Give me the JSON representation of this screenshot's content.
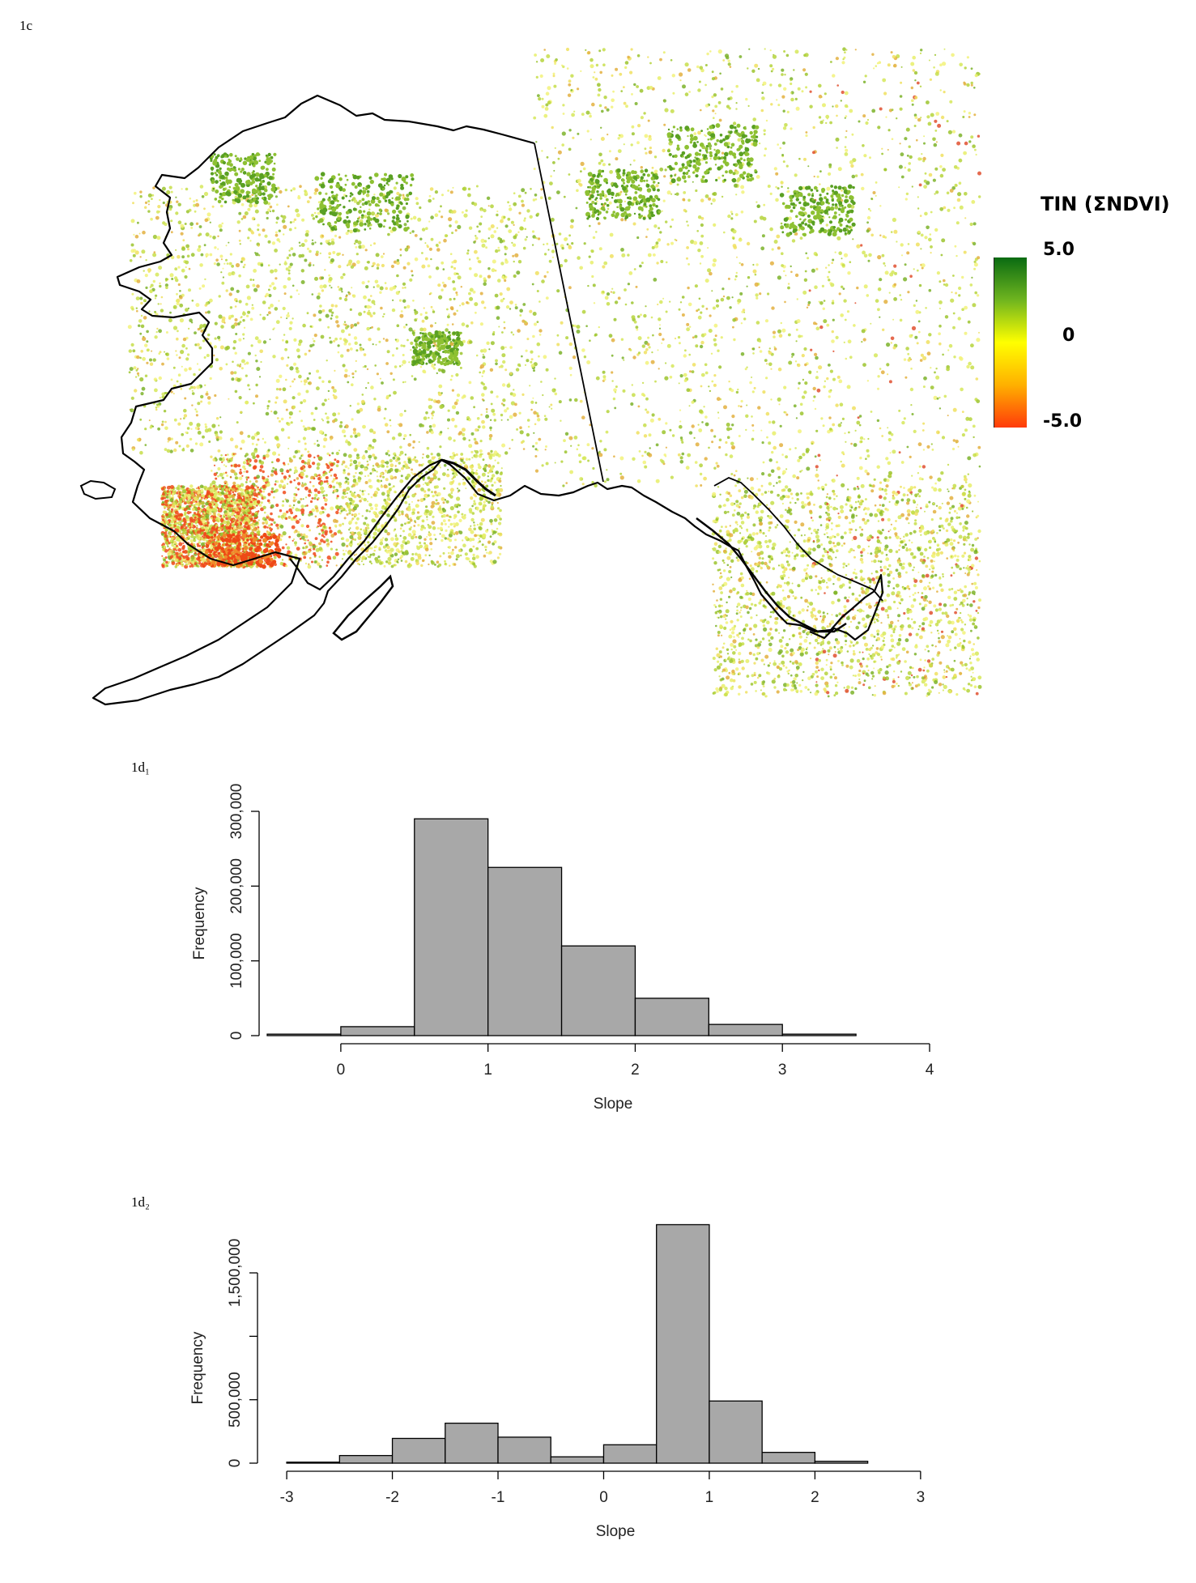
{
  "panels": {
    "map_label": "1c",
    "hist1_label": "1d₁",
    "hist2_label": "1d₂"
  },
  "map": {
    "legend_title": "TIN (ΣNDVI)",
    "legend_ticks": [
      "5.0",
      "0",
      "-5.0"
    ],
    "legend_colors": {
      "high": "#0a6b12",
      "mid": "#ffff00",
      "low": "#ff3b0a"
    }
  },
  "chart_data": [
    {
      "type": "bar",
      "title": "",
      "xlabel": "Slope",
      "ylabel": "Frequency",
      "bin_edges": [
        -0.5,
        0,
        0.5,
        1,
        1.5,
        2,
        2.5,
        3,
        3.5
      ],
      "values": [
        2000,
        12000,
        290000,
        225000,
        120000,
        50000,
        15000,
        2000
      ],
      "xticks": [
        "0",
        "1",
        "2",
        "3",
        "4"
      ],
      "xtick_values": [
        0,
        1,
        2,
        3,
        4
      ],
      "yticks": [
        "0",
        "100,000",
        "200,000",
        "300,000"
      ],
      "ytick_values": [
        0,
        100000,
        200000,
        300000
      ],
      "xlim": [
        -0.5,
        4
      ],
      "ylim": [
        0,
        300000
      ],
      "bar_color": "#a8a8a8"
    },
    {
      "type": "bar",
      "title": "",
      "xlabel": "Slope",
      "ylabel": "Frequency",
      "bin_edges": [
        -3,
        -2.5,
        -2,
        -1.5,
        -1,
        -0.5,
        0,
        0.5,
        1,
        1.5,
        2,
        2.5
      ],
      "values": [
        8000,
        60000,
        195000,
        315000,
        205000,
        50000,
        145000,
        1880000,
        490000,
        85000,
        15000
      ],
      "xticks": [
        "-3",
        "-2",
        "-1",
        "0",
        "1",
        "2",
        "3"
      ],
      "xtick_values": [
        -3,
        -2,
        -1,
        0,
        1,
        2,
        3
      ],
      "yticks": [
        "0",
        "500,000",
        "1,500,000"
      ],
      "ytick_values": [
        0,
        500000,
        1500000
      ],
      "ytick_marks": [
        0,
        500000,
        1000000,
        1500000
      ],
      "xlim": [
        -3.2,
        3.3
      ],
      "ylim": [
        0,
        1500000
      ],
      "bar_color": "#a8a8a8"
    }
  ]
}
